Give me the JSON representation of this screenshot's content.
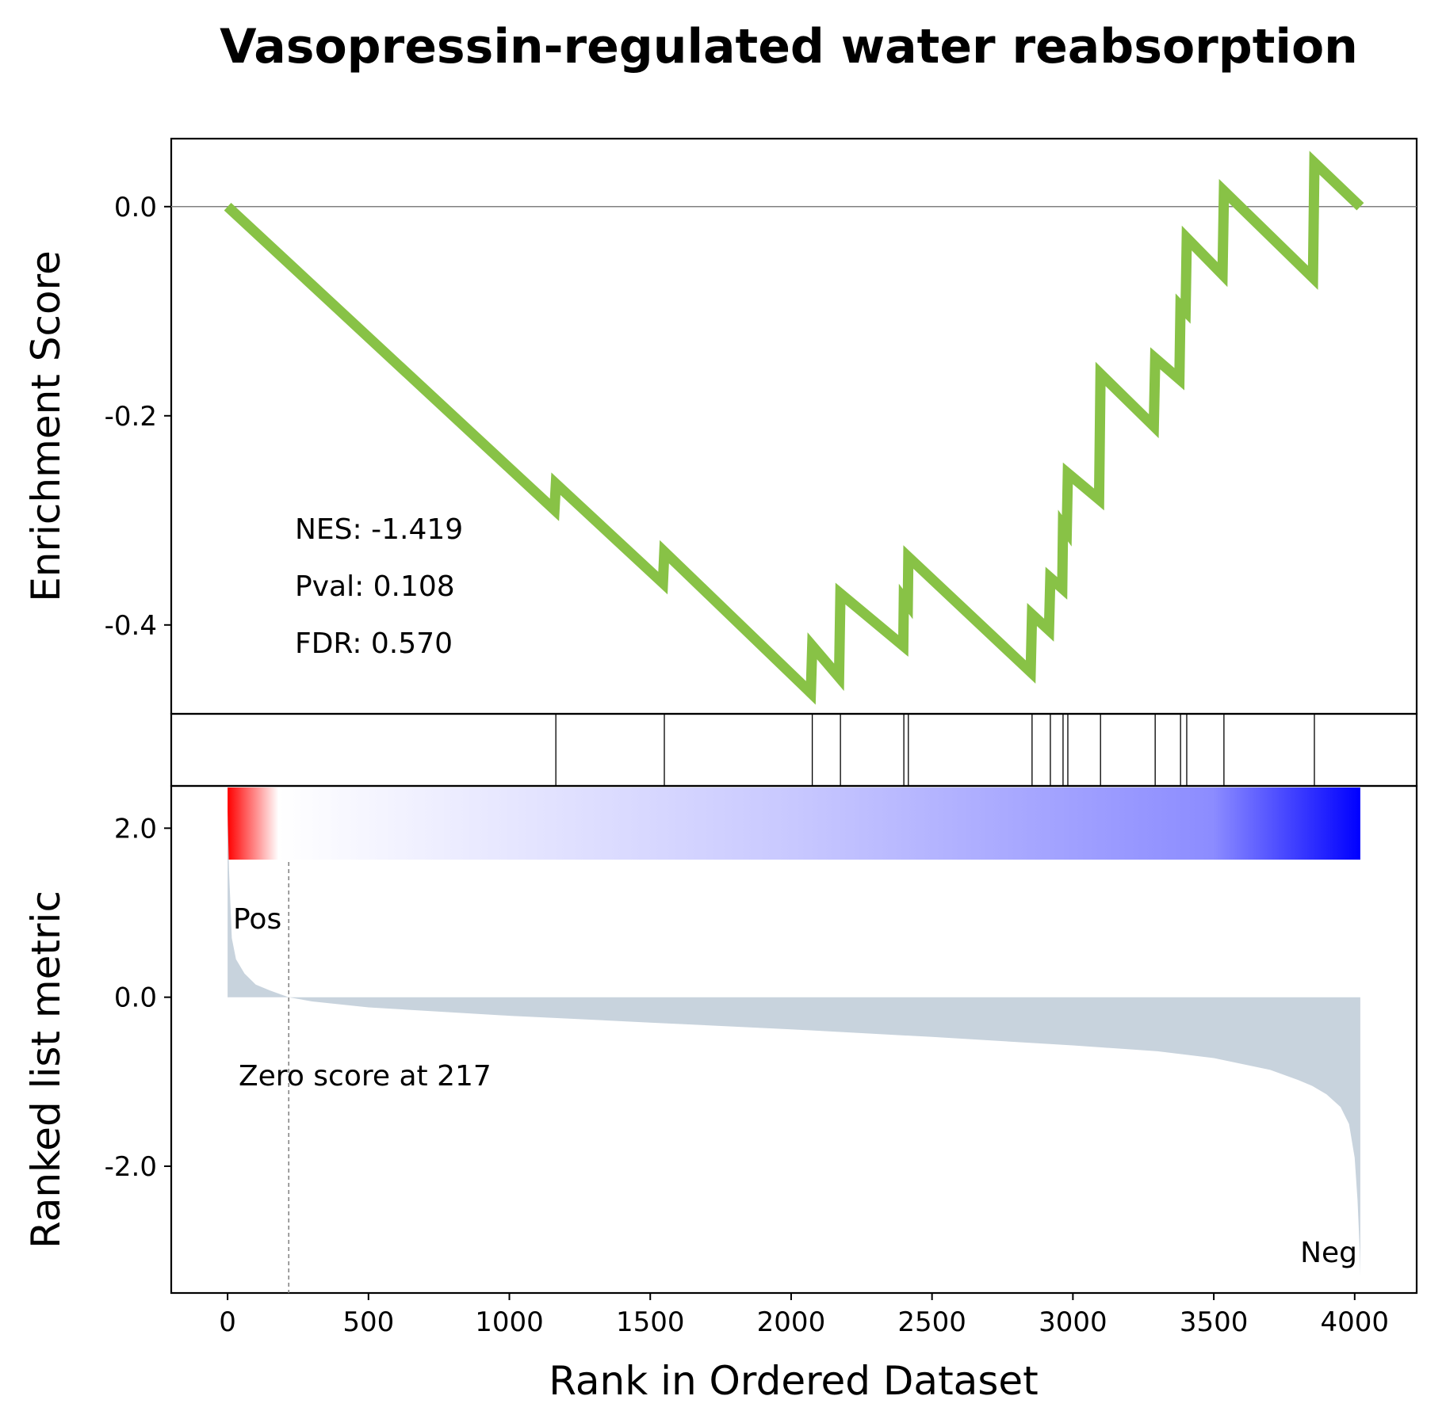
{
  "chart_data": {
    "type": "line",
    "title": "Vasopressin-regulated water reabsorption",
    "xlabel": "Rank in Ordered Dataset",
    "xlim": [
      -200,
      4220
    ],
    "x_ticks": [
      0,
      500,
      1000,
      1500,
      2000,
      2500,
      3000,
      3500,
      4000
    ],
    "colors": {
      "es_line": "#88c246",
      "metric_fill": "#c8d3dd",
      "pos_label": "#ff0000",
      "neg_label": "#0000ff",
      "zero_line": "#808080"
    },
    "enrichment": {
      "ylabel": "Enrichment Score",
      "ylim": [
        -0.485,
        0.065
      ],
      "y_ticks": [
        0.0,
        -0.2,
        -0.4
      ],
      "y_tick_labels": [
        "0.0",
        "-0.2",
        "-0.4"
      ],
      "stats": [
        "NES: -1.419",
        "Pval: 0.108",
        "FDR: 0.570"
      ],
      "series": [
        {
          "x": [
            0,
            1160,
            1165,
            1545,
            1550,
            2070,
            2075,
            2170,
            2175,
            2398,
            2400,
            2414,
            2416,
            2850,
            2855,
            2915,
            2920,
            2962,
            2965,
            2978,
            2982,
            3093,
            3098,
            3287,
            3292,
            3378,
            3382,
            3400,
            3404,
            3531,
            3536,
            3852,
            3857,
            4020
          ],
          "y": [
            0.0,
            -0.29,
            -0.265,
            -0.36,
            -0.33,
            -0.465,
            -0.42,
            -0.45,
            -0.37,
            -0.42,
            -0.375,
            -0.38,
            -0.335,
            -0.445,
            -0.39,
            -0.405,
            -0.355,
            -0.365,
            -0.305,
            -0.31,
            -0.255,
            -0.28,
            -0.16,
            -0.21,
            -0.145,
            -0.165,
            -0.095,
            -0.1,
            -0.03,
            -0.065,
            0.015,
            -0.068,
            0.042,
            0.0
          ]
        }
      ]
    },
    "hits": [
      1165,
      1550,
      2075,
      2175,
      2400,
      2416,
      2855,
      2920,
      2965,
      2982,
      3098,
      3292,
      3382,
      3404,
      3536,
      3857
    ],
    "ranked_metric": {
      "ylabel": "Ranked list metric",
      "ylim": [
        -3.5,
        2.5
      ],
      "y_ticks": [
        2.0,
        0.0,
        -2.0
      ],
      "y_tick_labels": [
        "2.0",
        "0.0",
        "-2.0"
      ],
      "zero_cross": 217,
      "zero_label": "Zero score at 217",
      "pos_label": "Pos",
      "neg_label": "Neg",
      "x": [
        0,
        5,
        15,
        30,
        60,
        100,
        150,
        217,
        300,
        500,
        1000,
        1500,
        2000,
        2500,
        3000,
        3300,
        3500,
        3700,
        3800,
        3850,
        3900,
        3950,
        3980,
        4000,
        4010,
        4018,
        4020
      ],
      "y": [
        2.2,
        1.5,
        0.7,
        0.45,
        0.28,
        0.15,
        0.08,
        0.0,
        -0.05,
        -0.12,
        -0.22,
        -0.3,
        -0.38,
        -0.47,
        -0.57,
        -0.64,
        -0.72,
        -0.86,
        -0.98,
        -1.05,
        -1.15,
        -1.3,
        -1.5,
        -1.9,
        -2.4,
        -3.0,
        -3.3
      ]
    }
  }
}
